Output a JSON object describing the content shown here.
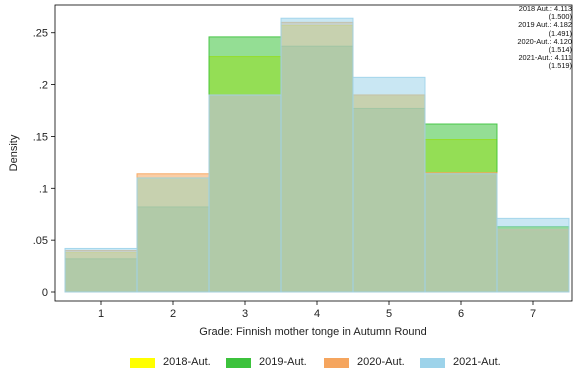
{
  "chart_data": {
    "type": "bar",
    "ylabel": "Density",
    "xlabel": "Grade: Finnish mother tonge in Autumn Round",
    "categories": [
      "1",
      "2",
      "3",
      "4",
      "5",
      "6",
      "7"
    ],
    "yticks": [
      "0",
      ".05",
      ".1",
      ".15",
      ".2",
      ".25"
    ],
    "ytick_values": [
      0,
      0.05,
      0.1,
      0.15,
      0.2,
      0.25
    ],
    "ylim": [
      0,
      0.27
    ],
    "grid": false,
    "legend_position": "bottom",
    "series": [
      {
        "name": "2018-Aut.",
        "color": "#ffff00",
        "values": [
          0.038,
          0.11,
          0.227,
          0.257,
          0.19,
          0.147,
          0.062
        ]
      },
      {
        "name": "2019-Aut.",
        "color": "#3cc23c",
        "values": [
          0.032,
          0.082,
          0.246,
          0.237,
          0.177,
          0.162,
          0.063
        ]
      },
      {
        "name": "2020-Aut.",
        "color": "#f5a55e",
        "values": [
          0.04,
          0.114,
          0.19,
          0.26,
          0.19,
          0.115,
          0.06
        ]
      },
      {
        "name": "2021-Aut.",
        "color": "#9dd3ea",
        "values": [
          0.042,
          0.11,
          0.19,
          0.264,
          0.207,
          0.114,
          0.071
        ]
      }
    ],
    "annotations": [
      "2018 Aut.: 4.113",
      "(1.500)",
      "2019 Aut.: 4.182",
      "(1.491)",
      "2020-Aut.: 4.120",
      "(1.514)",
      "2021-Aut.: 4.111",
      "(1.519)"
    ]
  }
}
